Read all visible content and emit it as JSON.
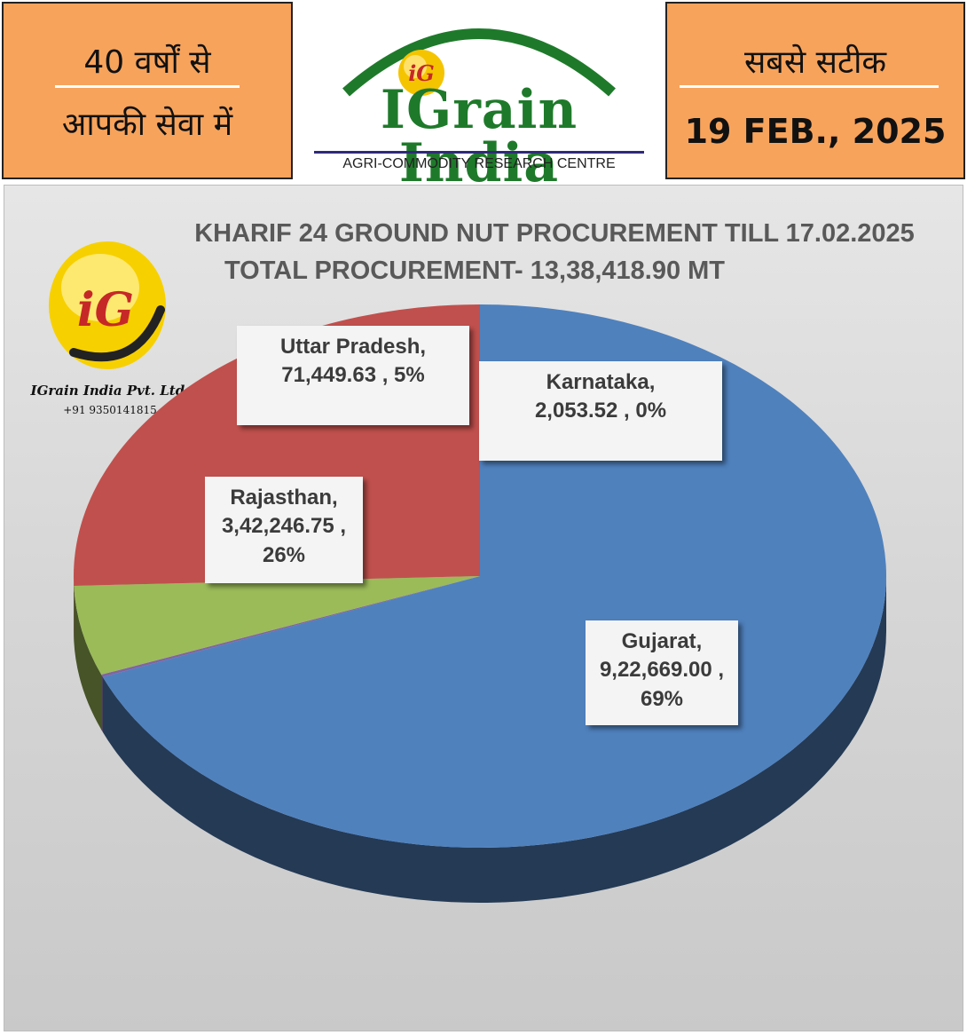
{
  "header": {
    "left_line1": "40 वर्षों से",
    "left_line2": "आपकी सेवा में",
    "brand_name": "IGrain India",
    "brand_mark": "iG",
    "tagline": "AGRI-COMMODITY RESEARCH CENTRE",
    "right_line1": "सबसे सटीक",
    "right_date": "19 FEB., 2025"
  },
  "watermark": {
    "logo_mark": "iG",
    "company": "IGrain India Pvt. Ltd.",
    "phone": "+91 9350141815"
  },
  "colors": {
    "header_orange": "#f7a35c",
    "brand_green": "#1e7a2a",
    "gujarat": "#4f81bd",
    "rajasthan": "#c0504d",
    "uttar_pradesh": "#9bbb59",
    "karnataka": "#8064a2"
  },
  "chart_data": {
    "type": "pie",
    "title": "KHARIF 24 GROUND NUT PROCUREMENT TILL 17.02.2025",
    "subtitle": "TOTAL PROCUREMENT- 13,38,418.90  MT",
    "slices": [
      {
        "name": "Gujarat",
        "value": 922669.0,
        "value_label": "9,22,669.00",
        "percent_label": "69%"
      },
      {
        "name": "Karnataka",
        "value": 2053.52,
        "value_label": "2,053.52",
        "percent_label": "0%"
      },
      {
        "name": "Uttar Pradesh",
        "value": 71449.63,
        "value_label": "71,449.63",
        "percent_label": "5%"
      },
      {
        "name": "Rajasthan",
        "value": 342246.75,
        "value_label": "3,42,246.75",
        "percent_label": "26%"
      }
    ],
    "style": "3d-pie"
  }
}
